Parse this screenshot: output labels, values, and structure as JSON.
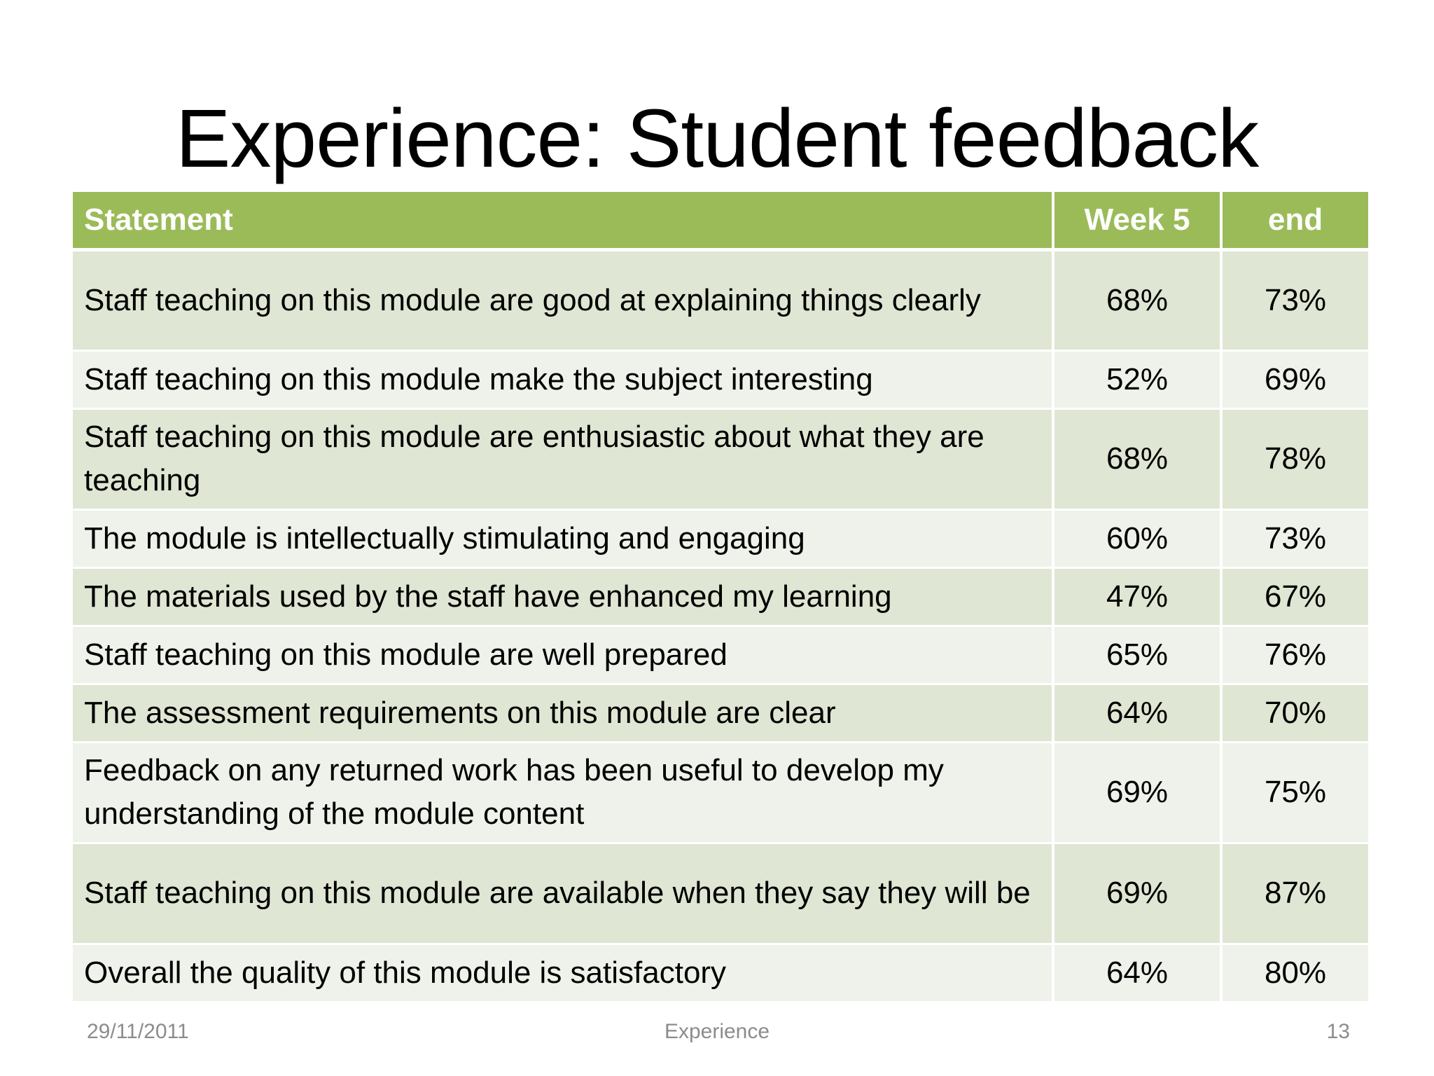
{
  "slide": {
    "title": "Experience: Student feedback"
  },
  "table": {
    "headers": {
      "statement": "Statement",
      "week5": "Week 5",
      "end": "end"
    },
    "rows": [
      {
        "statement": "Staff teaching on this module are good at explaining things clearly",
        "week5": "68%",
        "end": "73%"
      },
      {
        "statement": "Staff teaching on this module  make the subject interesting",
        "week5": "52%",
        "end": "69%"
      },
      {
        "statement": "Staff teaching on this module are enthusiastic about what they are teaching",
        "week5": "68%",
        "end": "78%"
      },
      {
        "statement": "The module is intellectually stimulating and engaging",
        "week5": "60%",
        "end": "73%"
      },
      {
        "statement": "The materials used by the staff have enhanced my learning",
        "week5": "47%",
        "end": "67%"
      },
      {
        "statement": "Staff teaching on this module are well prepared",
        "week5": "65%",
        "end": "76%"
      },
      {
        "statement": "The assessment requirements on this module are clear",
        "week5": "64%",
        "end": "70%"
      },
      {
        "statement": "Feedback on any returned work has been useful to develop my understanding of the module content",
        "week5": "69%",
        "end": "75%"
      },
      {
        "statement": "Staff teaching on this module are available when they say they will be",
        "week5": "69%",
        "end": "87%"
      },
      {
        "statement": "Overall the quality of this module is satisfactory",
        "week5": "64%",
        "end": "80%"
      }
    ]
  },
  "footer": {
    "date": "29/11/2011",
    "section": "Experience",
    "page_number": "13"
  },
  "colors": {
    "header_green": "#9bbb59",
    "row_dark": "#dfe6d3",
    "row_light": "#eff2ea",
    "footer_gray": "#8c8c8c"
  }
}
